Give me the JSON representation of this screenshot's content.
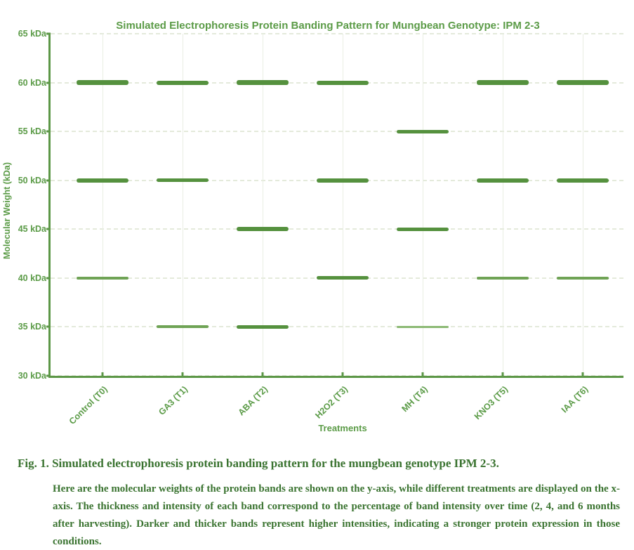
{
  "colors": {
    "chart_green": "#5b9b47",
    "axis_green": "#5c9747",
    "band_dark": "#55913e",
    "band_medium": "#6fa355",
    "band_light": "#8cb974",
    "gridline": "#e4eadb",
    "caption_green": "#3a7330"
  },
  "chart_data": {
    "type": "bar",
    "subtype": "electrophoresis-banding-pattern",
    "title": "Simulated Electrophoresis Protein Banding Pattern for Mungbean Genotype: IPM 2-3",
    "xlabel": "Treatments",
    "ylabel": "Molecular Weight (kDa)",
    "ylim": [
      30,
      65
    ],
    "ytick_values": [
      65,
      60,
      55,
      50,
      45,
      40,
      35,
      30
    ],
    "ytick_labels": [
      "65 kDa",
      "60 kDa",
      "55 kDa",
      "50 kDa",
      "45 kDa",
      "40 kDa",
      "35 kDa",
      "30 kDa"
    ],
    "grid": true,
    "legend": "none",
    "categories": [
      "Control (T0)",
      "GA3 (T1)",
      "ABA (T2)",
      "H2O2 (T3)",
      "MH (T4)",
      "KNO3 (T5)",
      "IAA (T6)"
    ],
    "series": [
      {
        "name": "Control (T0)",
        "bands": [
          {
            "mw_kda": 60,
            "thickness_px": 7,
            "intensity": "dark"
          },
          {
            "mw_kda": 50,
            "thickness_px": 6,
            "intensity": "dark"
          },
          {
            "mw_kda": 40,
            "thickness_px": 4,
            "intensity": "medium"
          }
        ]
      },
      {
        "name": "GA3 (T1)",
        "bands": [
          {
            "mw_kda": 60,
            "thickness_px": 6,
            "intensity": "dark"
          },
          {
            "mw_kda": 50,
            "thickness_px": 5,
            "intensity": "dark"
          },
          {
            "mw_kda": 35,
            "thickness_px": 4,
            "intensity": "medium"
          }
        ]
      },
      {
        "name": "ABA (T2)",
        "bands": [
          {
            "mw_kda": 60,
            "thickness_px": 7,
            "intensity": "dark"
          },
          {
            "mw_kda": 45,
            "thickness_px": 6,
            "intensity": "dark"
          },
          {
            "mw_kda": 35,
            "thickness_px": 5,
            "intensity": "dark"
          }
        ]
      },
      {
        "name": "H2O2 (T3)",
        "bands": [
          {
            "mw_kda": 60,
            "thickness_px": 6,
            "intensity": "dark"
          },
          {
            "mw_kda": 50,
            "thickness_px": 6,
            "intensity": "dark"
          },
          {
            "mw_kda": 40,
            "thickness_px": 5,
            "intensity": "dark"
          }
        ]
      },
      {
        "name": "MH (T4)",
        "bands": [
          {
            "mw_kda": 55,
            "thickness_px": 5,
            "intensity": "dark"
          },
          {
            "mw_kda": 45,
            "thickness_px": 5,
            "intensity": "dark"
          },
          {
            "mw_kda": 35,
            "thickness_px": 3,
            "intensity": "light"
          }
        ]
      },
      {
        "name": "KNO3 (T5)",
        "bands": [
          {
            "mw_kda": 60,
            "thickness_px": 7,
            "intensity": "dark"
          },
          {
            "mw_kda": 50,
            "thickness_px": 6,
            "intensity": "dark"
          },
          {
            "mw_kda": 40,
            "thickness_px": 4,
            "intensity": "medium"
          }
        ]
      },
      {
        "name": "IAA (T6)",
        "bands": [
          {
            "mw_kda": 60,
            "thickness_px": 7,
            "intensity": "dark"
          },
          {
            "mw_kda": 50,
            "thickness_px": 6,
            "intensity": "dark"
          },
          {
            "mw_kda": 40,
            "thickness_px": 4,
            "intensity": "medium"
          }
        ]
      }
    ]
  },
  "caption": {
    "heading": "Fig. 1. Simulated electrophoresis protein banding pattern for the mungbean genotype IPM 2-3.",
    "body": "Here are the molecular weights of the protein bands are shown on the y-axis, while different treatments are displayed on the x-axis. The thickness and intensity of each band correspond to the percentage of band intensity over time (2, 4, and 6 months after harvesting). Darker and thicker bands represent higher intensities, indicating a stronger protein expression in those conditions."
  }
}
